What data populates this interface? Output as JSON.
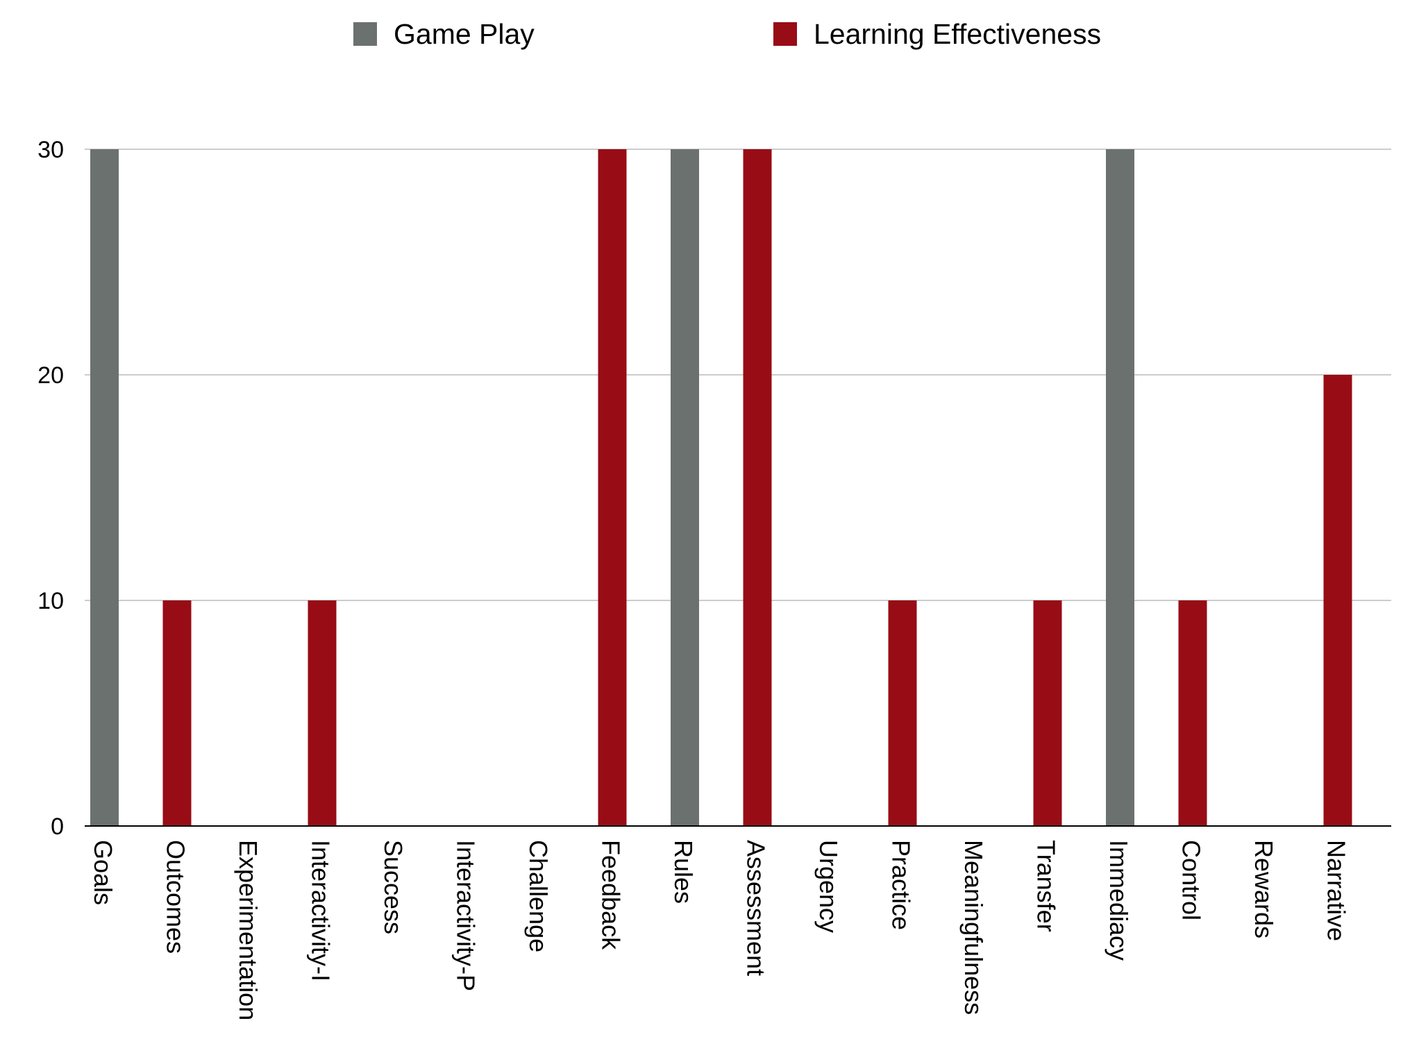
{
  "colors": {
    "game_play": "#6b716f",
    "learning_effectiveness": "#980c15",
    "gridline": "#bbbbbb",
    "axis": "#000000"
  },
  "chart_data": {
    "type": "bar",
    "title": "",
    "xlabel": "",
    "ylabel": "",
    "ylim": [
      0,
      30
    ],
    "yticks": [
      0,
      10,
      20,
      30
    ],
    "grid": true,
    "legend_position": "top",
    "categories": [
      "Goals",
      "Outcomes",
      "Experimentation",
      "Interactivity-I",
      "Success",
      "Interactivity-P",
      "Challenge",
      "Feedback",
      "Rules",
      "Assessment",
      "Urgency",
      "Practice",
      "Meaningfulness",
      "Transfer",
      "Immediacy",
      "Control",
      "Rewards",
      "Narrative"
    ],
    "series": [
      {
        "name": "Game Play",
        "color": "#6b716f",
        "values": [
          30,
          0,
          0,
          0,
          0,
          0,
          0,
          0,
          30,
          0,
          0,
          0,
          0,
          0,
          30,
          0,
          0,
          0
        ]
      },
      {
        "name": "Learning Effectiveness",
        "color": "#980c15",
        "values": [
          0,
          10,
          0,
          10,
          0,
          0,
          0,
          30,
          0,
          30,
          0,
          10,
          0,
          10,
          0,
          10,
          0,
          20
        ]
      }
    ]
  }
}
